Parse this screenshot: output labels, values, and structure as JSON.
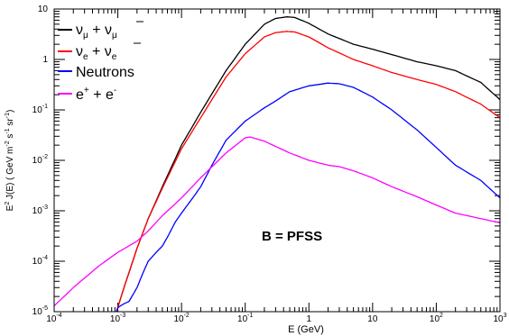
{
  "chart_data": {
    "type": "line",
    "xlabel": "E (GeV)",
    "ylabel": {
      "main": "E",
      "sup1": "2",
      "mid": " J(E) ( GeV m",
      "sup2": "-2",
      "mid2": " s",
      "sup3": "-1",
      "mid3": " sr",
      "sup4": "-1",
      "end": ")"
    },
    "x_scale": "log",
    "y_scale": "log",
    "xlim": [
      0.0001,
      1000
    ],
    "ylim": [
      1e-05,
      10
    ],
    "x_ticks": [
      {
        "value": 0.0001,
        "base": "10",
        "exp": "-4"
      },
      {
        "value": 0.001,
        "base": "10",
        "exp": "-3"
      },
      {
        "value": 0.01,
        "base": "10",
        "exp": "-2"
      },
      {
        "value": 0.1,
        "base": "10",
        "exp": "-1"
      },
      {
        "value": 1,
        "base": "1",
        "exp": ""
      },
      {
        "value": 10,
        "base": "10",
        "exp": ""
      },
      {
        "value": 100,
        "base": "10",
        "exp": "2"
      },
      {
        "value": 1000,
        "base": "10",
        "exp": "3"
      }
    ],
    "y_ticks": [
      {
        "value": 1e-05,
        "base": "10",
        "exp": "-5"
      },
      {
        "value": 0.0001,
        "base": "10",
        "exp": "-4"
      },
      {
        "value": 0.001,
        "base": "10",
        "exp": "-3"
      },
      {
        "value": 0.01,
        "base": "10",
        "exp": "-2"
      },
      {
        "value": 0.1,
        "base": "10",
        "exp": "-1"
      },
      {
        "value": 1,
        "base": "1",
        "exp": ""
      },
      {
        "value": 10,
        "base": "10",
        "exp": ""
      }
    ],
    "annotation": "B = PFSS",
    "legend_position": "top-left",
    "series": [
      {
        "name": "νμ + ν̄μ",
        "legend": {
          "a": "ν",
          "a_sub": "μ",
          "plus": " + ",
          "b": "ν",
          "b_sub": "μ",
          "bar": true
        },
        "color": "#000000",
        "x": [
          0.00095,
          0.001,
          0.0011,
          0.0013,
          0.0015,
          0.002,
          0.003,
          0.005,
          0.01,
          0.02,
          0.05,
          0.1,
          0.2,
          0.3,
          0.45,
          0.6,
          1,
          2,
          5,
          10,
          20,
          50,
          100,
          200,
          500,
          1000
        ],
        "y": [
          1e-05,
          1.2e-05,
          1.8e-05,
          3.5e-05,
          6e-05,
          0.00018,
          0.0007,
          0.003,
          0.02,
          0.09,
          0.6,
          2.0,
          5.0,
          6.5,
          7.0,
          6.8,
          5.2,
          3.2,
          2.0,
          1.6,
          1.25,
          0.9,
          0.75,
          0.6,
          0.35,
          0.16
        ]
      },
      {
        "name": "νe + ν̄e",
        "legend": {
          "a": "ν",
          "a_sub": "e",
          "plus": " + ",
          "b": "ν",
          "b_sub": "e",
          "bar": true
        },
        "color": "#ff0000",
        "x": [
          0.00095,
          0.001,
          0.0011,
          0.0013,
          0.0015,
          0.002,
          0.003,
          0.005,
          0.01,
          0.02,
          0.05,
          0.1,
          0.2,
          0.3,
          0.45,
          0.6,
          1,
          2,
          5,
          10,
          20,
          50,
          100,
          200,
          500,
          1000
        ],
        "y": [
          1e-05,
          1.2e-05,
          1.8e-05,
          3.5e-05,
          6e-05,
          0.00018,
          0.0007,
          0.0028,
          0.017,
          0.07,
          0.45,
          1.3,
          2.8,
          3.4,
          3.6,
          3.5,
          2.8,
          1.7,
          1.0,
          0.75,
          0.55,
          0.4,
          0.32,
          0.23,
          0.13,
          0.07
        ]
      },
      {
        "name": "Neutrons",
        "legend": {
          "text": "Neutrons"
        },
        "color": "#0000ff",
        "x": [
          0.00095,
          0.001,
          0.0012,
          0.0015,
          0.002,
          0.0025,
          0.003,
          0.004,
          0.005,
          0.006,
          0.008,
          0.01,
          0.015,
          0.02,
          0.03,
          0.05,
          0.1,
          0.2,
          0.3,
          0.5,
          1,
          2,
          3,
          5,
          10,
          20,
          50,
          100,
          200,
          500,
          1000
        ],
        "y": [
          1e-05,
          1.2e-05,
          1.4e-05,
          1.6e-05,
          3e-05,
          6e-05,
          0.0001,
          0.00015,
          0.0002,
          0.0003,
          0.0006,
          0.0009,
          0.0018,
          0.003,
          0.008,
          0.025,
          0.06,
          0.11,
          0.15,
          0.23,
          0.3,
          0.34,
          0.33,
          0.28,
          0.18,
          0.1,
          0.04,
          0.018,
          0.008,
          0.004,
          0.0018
        ]
      },
      {
        "name": "e+ + e-",
        "legend": {
          "a": "e",
          "a_sup": "+",
          "plus": " + ",
          "b": "e",
          "b_sup": "-"
        },
        "color": "#ff00ff",
        "x": [
          0.0001,
          0.0002,
          0.0005,
          0.001,
          0.002,
          0.003,
          0.005,
          0.01,
          0.02,
          0.05,
          0.1,
          0.12,
          0.2,
          0.5,
          1,
          2,
          3,
          5,
          10,
          20,
          50,
          100,
          200,
          500,
          1000
        ],
        "y": [
          1.3e-05,
          3e-05,
          8e-05,
          0.00015,
          0.00025,
          0.0004,
          0.0008,
          0.0018,
          0.0045,
          0.014,
          0.028,
          0.029,
          0.024,
          0.014,
          0.01,
          0.008,
          0.0075,
          0.0062,
          0.0045,
          0.003,
          0.0019,
          0.0013,
          0.0009,
          0.0007,
          0.00058
        ]
      }
    ]
  }
}
